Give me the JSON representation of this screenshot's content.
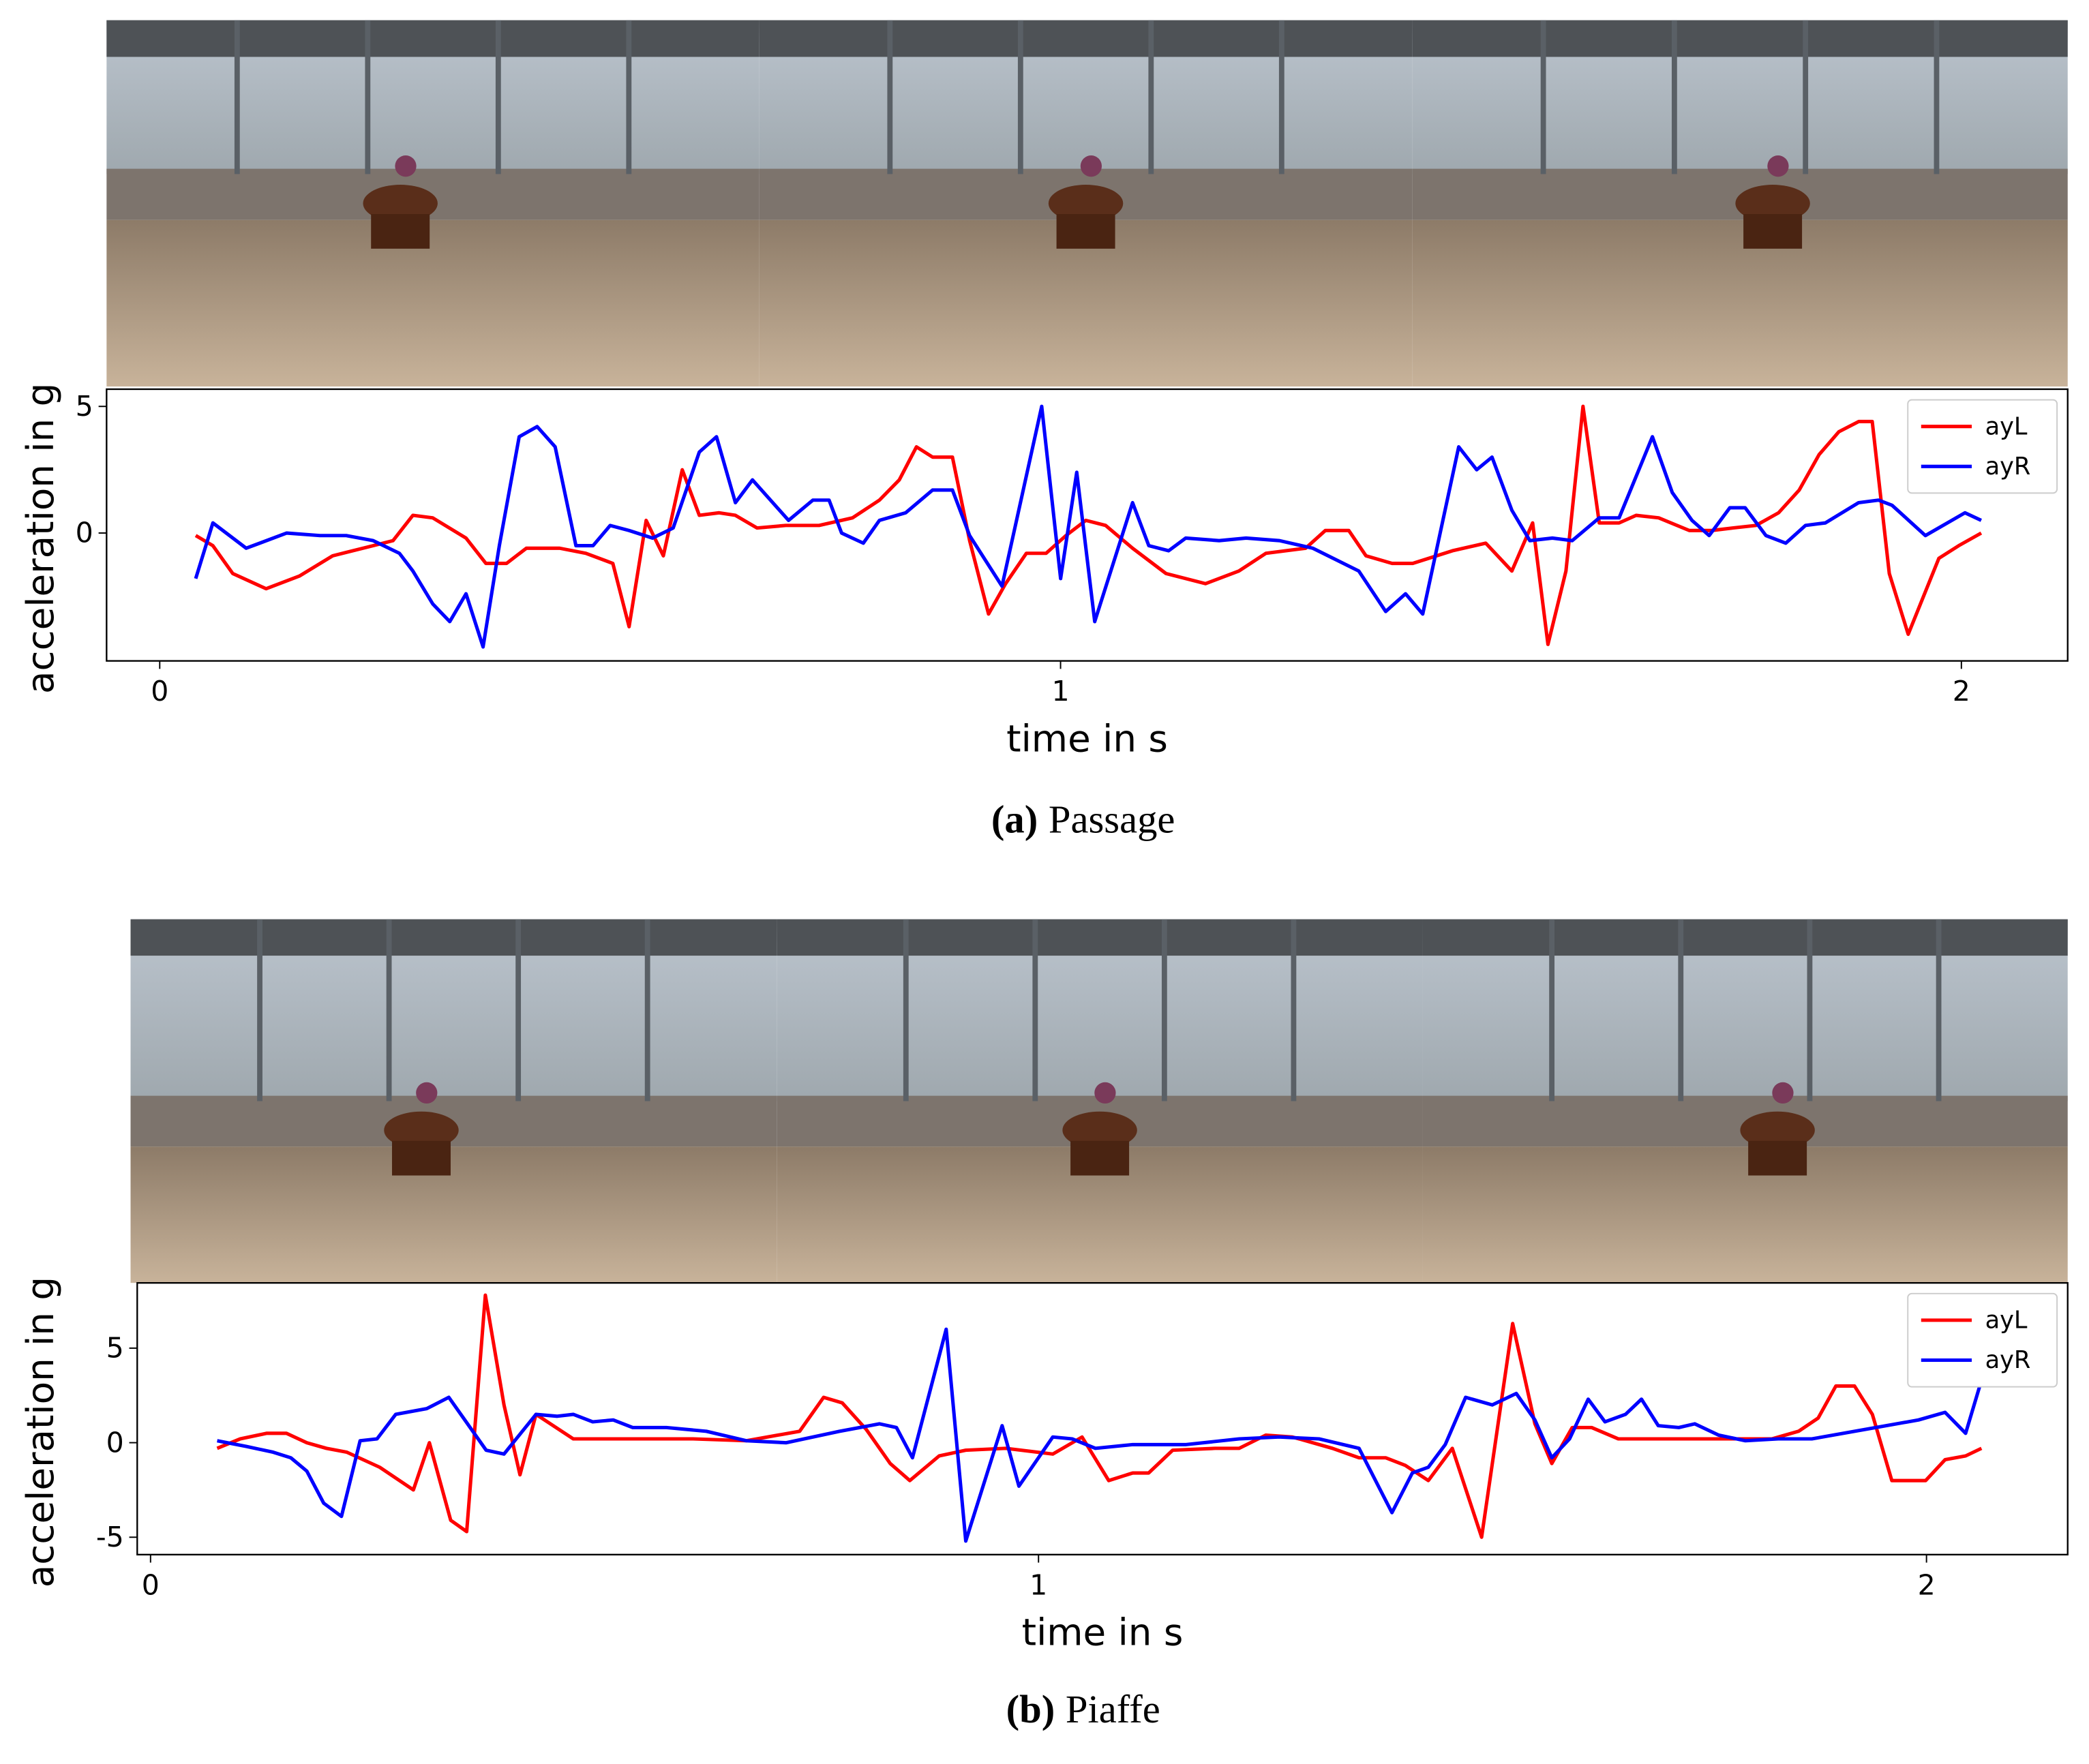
{
  "chart_data": [
    {
      "type": "line",
      "x_label": "time in s",
      "y_label": "acceleration in g",
      "caption_label": "(a)",
      "caption": "Passage",
      "xlim": [
        -0.059,
        2.118
      ],
      "ylim": [
        -5.05,
        5.68
      ],
      "xticks": [
        0,
        1,
        2
      ],
      "yticks": [
        0,
        5
      ],
      "legend": "upper right",
      "series": [
        {
          "name": "ayL",
          "color": "#ff0000",
          "x": [
            0.04,
            0.059,
            0.081,
            0.118,
            0.155,
            0.192,
            0.237,
            0.259,
            0.281,
            0.303,
            0.34,
            0.362,
            0.385,
            0.407,
            0.444,
            0.473,
            0.503,
            0.521,
            0.54,
            0.559,
            0.58,
            0.599,
            0.621,
            0.639,
            0.663,
            0.695,
            0.732,
            0.769,
            0.799,
            0.821,
            0.84,
            0.858,
            0.88,
            0.899,
            0.92,
            0.939,
            0.962,
            0.984,
            1.006,
            1.028,
            1.05,
            1.08,
            1.117,
            1.161,
            1.198,
            1.228,
            1.272,
            1.294,
            1.32,
            1.339,
            1.368,
            1.391,
            1.435,
            1.472,
            1.501,
            1.524,
            1.541,
            1.561,
            1.58,
            1.598,
            1.62,
            1.639,
            1.664,
            1.698,
            1.723,
            1.746,
            1.772,
            1.797,
            1.82,
            1.842,
            1.864,
            1.886,
            1.901,
            1.92,
            1.941,
            1.975,
            1.997,
            2.022
          ],
          "values": [
            -0.1,
            -0.5,
            -1.6,
            -2.2,
            -1.7,
            -0.9,
            -0.5,
            -0.3,
            0.7,
            0.6,
            -0.2,
            -1.2,
            -1.2,
            -0.6,
            -0.6,
            -0.8,
            -1.2,
            -3.7,
            0.5,
            -0.9,
            2.5,
            0.7,
            0.8,
            0.7,
            0.2,
            0.3,
            0.3,
            0.6,
            1.3,
            2.1,
            3.4,
            3.0,
            3.0,
            -0.3,
            -3.2,
            -2.0,
            -0.8,
            -0.8,
            -0.1,
            0.5,
            0.3,
            -0.6,
            -1.6,
            -2.0,
            -1.5,
            -0.8,
            -0.6,
            0.1,
            0.1,
            -0.9,
            -1.2,
            -1.2,
            -0.7,
            -0.4,
            -1.5,
            0.4,
            -4.4,
            -1.5,
            5.0,
            0.4,
            0.4,
            0.7,
            0.6,
            0.1,
            0.1,
            0.2,
            0.3,
            0.8,
            1.7,
            3.1,
            4.0,
            4.4,
            4.4,
            -1.6,
            -4.0,
            -1.0,
            -0.5,
            0.0
          ]
        },
        {
          "name": "ayR",
          "color": "#0000ff",
          "x": [
            0.04,
            0.059,
            0.096,
            0.141,
            0.178,
            0.207,
            0.237,
            0.266,
            0.281,
            0.303,
            0.322,
            0.34,
            0.359,
            0.377,
            0.399,
            0.419,
            0.439,
            0.462,
            0.481,
            0.5,
            0.521,
            0.547,
            0.57,
            0.599,
            0.618,
            0.639,
            0.658,
            0.698,
            0.725,
            0.743,
            0.757,
            0.781,
            0.799,
            0.828,
            0.858,
            0.88,
            0.899,
            0.935,
            0.979,
            1.0,
            1.018,
            1.038,
            1.08,
            1.098,
            1.12,
            1.139,
            1.176,
            1.206,
            1.243,
            1.28,
            1.331,
            1.361,
            1.383,
            1.402,
            1.442,
            1.462,
            1.479,
            1.501,
            1.521,
            1.546,
            1.568,
            1.598,
            1.62,
            1.657,
            1.679,
            1.701,
            1.72,
            1.743,
            1.76,
            1.783,
            1.805,
            1.827,
            1.849,
            1.886,
            1.908,
            1.923,
            1.96,
            2.004,
            2.022
          ],
          "values": [
            -1.8,
            0.4,
            -0.6,
            0,
            -0.1,
            -0.1,
            -0.3,
            -0.8,
            -1.5,
            -2.8,
            -3.5,
            -2.4,
            -4.5,
            -0.5,
            3.8,
            4.2,
            3.4,
            -0.5,
            -0.5,
            0.3,
            0.1,
            -0.2,
            0.2,
            3.2,
            3.8,
            1.2,
            2.1,
            0.5,
            1.3,
            1.3,
            0,
            -0.4,
            0.5,
            0.8,
            1.7,
            1.7,
            -0.1,
            -2.1,
            5.0,
            -1.8,
            2.4,
            -3.5,
            1.2,
            -0.5,
            -0.7,
            -0.2,
            -0.3,
            -0.2,
            -0.3,
            -0.6,
            -1.5,
            -3.1,
            -2.4,
            -3.2,
            3.4,
            2.5,
            3.0,
            0.9,
            -0.3,
            -0.2,
            -0.3,
            0.6,
            0.6,
            3.8,
            1.6,
            0.5,
            -0.1,
            1.0,
            1.0,
            -0.1,
            -0.4,
            0.3,
            0.4,
            1.2,
            1.3,
            1.1,
            -0.1,
            0.8,
            0.5
          ]
        }
      ]
    },
    {
      "type": "line",
      "x_label": "time in s",
      "y_label": "acceleration in g",
      "caption_label": "(b)",
      "caption": "Piaffe",
      "xlim": [
        -0.015,
        2.159
      ],
      "ylim": [
        -5.92,
        8.45
      ],
      "xticks": [
        0,
        1,
        2
      ],
      "yticks": [
        -5,
        0,
        5
      ],
      "legend": "upper right",
      "series": [
        {
          "name": "ayL",
          "color": "#ff0000",
          "x": [
            0.075,
            0.101,
            0.131,
            0.153,
            0.176,
            0.198,
            0.221,
            0.258,
            0.296,
            0.314,
            0.338,
            0.356,
            0.377,
            0.398,
            0.416,
            0.434,
            0.476,
            0.536,
            0.611,
            0.671,
            0.731,
            0.758,
            0.779,
            0.806,
            0.833,
            0.855,
            0.888,
            0.918,
            0.963,
            1.016,
            1.049,
            1.079,
            1.106,
            1.124,
            1.151,
            1.199,
            1.226,
            1.256,
            1.286,
            1.331,
            1.361,
            1.391,
            1.413,
            1.439,
            1.466,
            1.499,
            1.534,
            1.559,
            1.578,
            1.601,
            1.623,
            1.653,
            1.721,
            1.781,
            1.826,
            1.856,
            1.878,
            1.898,
            1.919,
            1.939,
            1.961,
            1.979,
            1.999,
            2.021,
            2.044,
            2.062
          ],
          "values": [
            -0.3,
            0.2,
            0.5,
            0.5,
            0,
            -0.3,
            -0.5,
            -1.3,
            -2.5,
            0,
            -4.1,
            -4.7,
            7.8,
            2,
            -1.7,
            1.5,
            0.2,
            0.2,
            0.2,
            0.1,
            0.6,
            2.4,
            2.1,
            0.7,
            -1.1,
            -2.0,
            -0.7,
            -0.4,
            -0.3,
            -0.6,
            0.3,
            -2.0,
            -1.6,
            -1.6,
            -0.4,
            -0.3,
            -0.3,
            0.4,
            0.3,
            -0.3,
            -0.8,
            -0.8,
            -1.2,
            -2.0,
            -0.3,
            -5.0,
            6.3,
            1,
            -1.1,
            0.8,
            0.8,
            0.2,
            0.2,
            0.2,
            0.2,
            0.6,
            1.3,
            3.0,
            3.0,
            1.5,
            -2.0,
            -2.0,
            -2.0,
            -0.9,
            -0.7,
            -0.3
          ]
        },
        {
          "name": "ayR",
          "color": "#0000ff",
          "x": [
            0.075,
            0.108,
            0.138,
            0.158,
            0.176,
            0.195,
            0.215,
            0.236,
            0.255,
            0.276,
            0.311,
            0.336,
            0.36,
            0.378,
            0.398,
            0.434,
            0.458,
            0.476,
            0.498,
            0.521,
            0.543,
            0.581,
            0.626,
            0.671,
            0.716,
            0.776,
            0.821,
            0.84,
            0.858,
            0.896,
            0.918,
            0.959,
            0.978,
            1.016,
            1.038,
            1.064,
            1.106,
            1.166,
            1.226,
            1.271,
            1.316,
            1.361,
            1.398,
            1.421,
            1.439,
            1.458,
            1.481,
            1.511,
            1.538,
            1.559,
            1.578,
            1.598,
            1.619,
            1.638,
            1.661,
            1.679,
            1.698,
            1.721,
            1.739,
            1.766,
            1.796,
            1.833,
            1.871,
            1.931,
            1.991,
            2.021,
            2.044,
            2.062
          ],
          "values": [
            0.1,
            -0.2,
            -0.5,
            -0.8,
            -1.5,
            -3.2,
            -3.9,
            0.1,
            0.2,
            1.5,
            1.8,
            2.4,
            0.8,
            -0.4,
            -0.6,
            1.5,
            1.4,
            1.5,
            1.1,
            1.2,
            0.8,
            0.8,
            0.6,
            0.1,
            0,
            0.6,
            1.0,
            0.8,
            -0.8,
            6.0,
            -5.2,
            0.9,
            -2.3,
            0.3,
            0.2,
            -0.3,
            -0.1,
            -0.1,
            0.2,
            0.3,
            0.2,
            -0.3,
            -3.7,
            -1.6,
            -1.3,
            -0.1,
            2.4,
            2.0,
            2.6,
            1.2,
            -0.8,
            0.2,
            2.3,
            1.1,
            1.5,
            2.3,
            0.9,
            0.8,
            1.0,
            0.4,
            0.1,
            0.2,
            0.2,
            0.7,
            1.2,
            1.6,
            0.5,
            3.3
          ]
        }
      ]
    }
  ]
}
